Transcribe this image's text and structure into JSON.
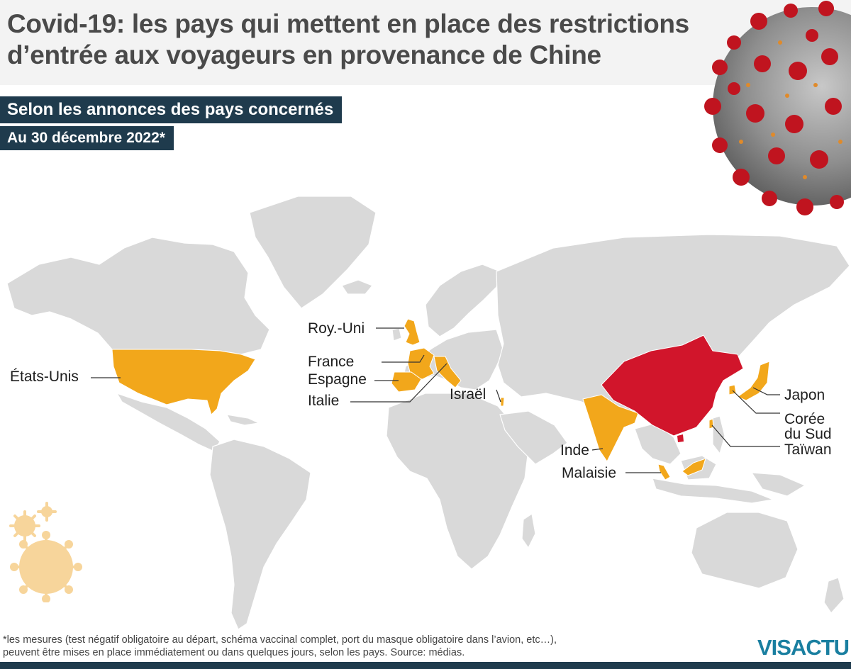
{
  "header": {
    "title_lines": [
      "Covid-19: les pays qui mettent en place des restrictions",
      "d’entrée aux voyageurs en provenance de Chine"
    ],
    "subtitle": "Selon les annonces des pays concernés",
    "date": "Au 30 décembre 2022*"
  },
  "map": {
    "legend_colors": {
      "land": "#d9d9d9",
      "border": "#ffffff",
      "restricting_countries": "#f2a71b",
      "origin_country": "#d1152b"
    },
    "origin_country": "Chine",
    "labels": {
      "usa": "États-Unis",
      "uk": "Roy.-Uni",
      "france": "France",
      "spain": "Espagne",
      "italy": "Italie",
      "israel": "Israël",
      "india": "Inde",
      "malaysia": "Malaisie",
      "japan": "Japon",
      "south_korea_line1": "Corée",
      "south_korea_line2": "du Sud",
      "taiwan": "Taïwan"
    }
  },
  "footer": {
    "footnote_lines": [
      "*les mesures (test négatif obligatoire au départ, schéma vaccinal complet, port du masque obligatoire dans l’avion, etc…),",
      "peuvent être mises en place immédiatement ou dans quelques jours, selon les pays. Source: médias."
    ],
    "logo": "VISACTU",
    "logo_icon": "visactu-logo-icon"
  }
}
